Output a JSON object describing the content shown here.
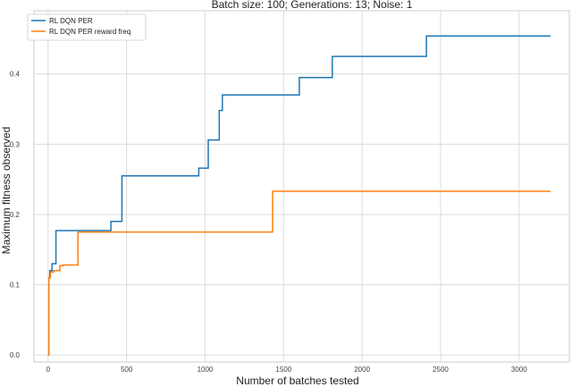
{
  "chart_data": {
    "type": "line",
    "title": "Batch size: 100; Generations: 13; Noise: 1",
    "xlabel": "Number of batches tested",
    "ylabel": "Maximum fitness observed",
    "xlim": [
      -90,
      3320
    ],
    "ylim": [
      -0.01,
      0.49
    ],
    "xticks": [
      0,
      500,
      1000,
      1500,
      2000,
      2500,
      3000
    ],
    "xtick_labels": [
      "0",
      "500",
      "1000",
      "1500",
      "2000",
      "2500",
      "3000"
    ],
    "yticks": [
      0.0,
      0.1,
      0.2,
      0.3,
      0.4
    ],
    "ytick_labels": [
      "0.0",
      "0.1",
      "0.2",
      "0.3",
      "0.4"
    ],
    "grid": true,
    "legend_position": "top-left",
    "series": [
      {
        "name": "RL DQN PER",
        "color": "#1f77b4",
        "step": true,
        "x": [
          0,
          5,
          10,
          25,
          50,
          400,
          470,
          960,
          1020,
          1090,
          1110,
          1600,
          1810,
          2410,
          3200
        ],
        "y": [
          0.0,
          0.11,
          0.12,
          0.13,
          0.177,
          0.19,
          0.255,
          0.266,
          0.306,
          0.348,
          0.37,
          0.395,
          0.425,
          0.454,
          0.454
        ]
      },
      {
        "name": "RL DQN PER reward freq",
        "color": "#ff7f0e",
        "step": true,
        "x": [
          0,
          5,
          15,
          35,
          75,
          95,
          130,
          190,
          1420,
          1430,
          3200
        ],
        "y": [
          0.0,
          0.11,
          0.118,
          0.12,
          0.127,
          0.128,
          0.128,
          0.175,
          0.175,
          0.233,
          0.233
        ]
      }
    ]
  }
}
